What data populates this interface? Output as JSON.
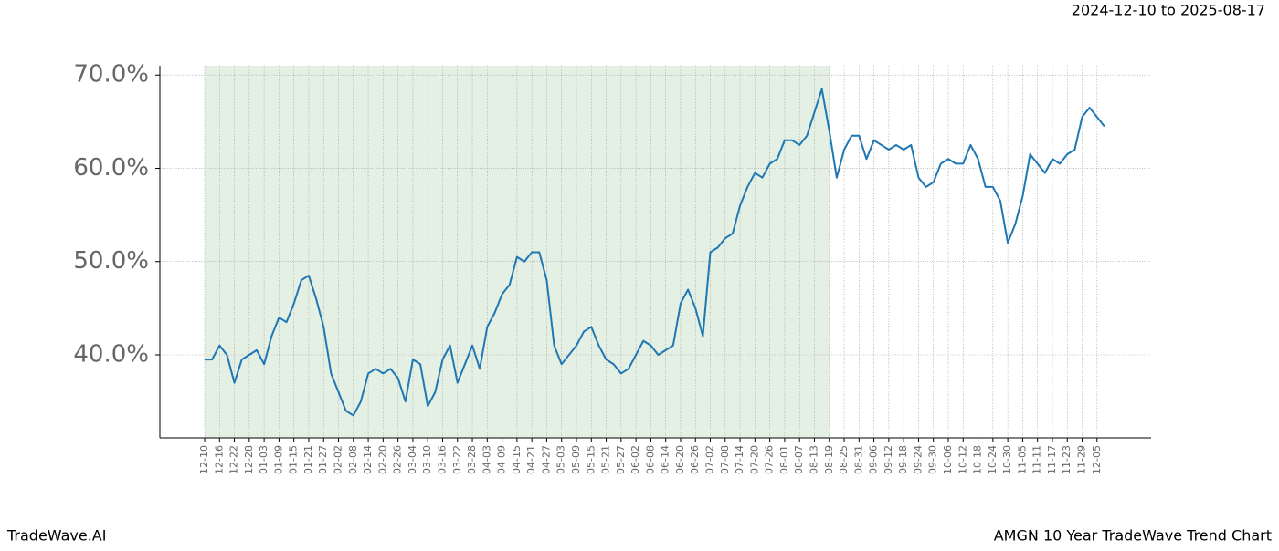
{
  "chart_data": {
    "type": "line",
    "title": "AMGN 10 Year TradeWave Trend Chart",
    "subtitle": "2024-12-10 to 2025-08-17",
    "source": "TradeWave.AI",
    "categories": [
      "12-10",
      null,
      "12-16",
      null,
      "12-22",
      null,
      "12-28",
      null,
      "01-03",
      null,
      "01-09",
      null,
      "01-15",
      null,
      "01-21",
      null,
      "01-27",
      null,
      "02-02",
      null,
      "02-08",
      null,
      "02-14",
      null,
      "02-20",
      null,
      "02-26",
      null,
      "03-04",
      null,
      "03-10",
      null,
      "03-16",
      null,
      "03-22",
      null,
      "03-28",
      null,
      "04-03",
      null,
      "04-09",
      null,
      "04-15",
      null,
      "04-21",
      null,
      "04-27",
      null,
      "05-03",
      null,
      "05-09",
      null,
      "05-15",
      null,
      "05-21",
      null,
      "05-27",
      null,
      "06-02",
      null,
      "06-08",
      null,
      "06-14",
      null,
      "06-20",
      null,
      "06-26",
      null,
      "07-02",
      null,
      "07-08",
      null,
      "07-14",
      null,
      "07-20",
      null,
      "07-26",
      null,
      "08-01",
      null,
      "08-07",
      null,
      "08-13",
      null,
      "08-19",
      null,
      "08-25",
      null,
      "08-31",
      null,
      "09-06",
      null,
      "09-12",
      null,
      "09-18",
      null,
      "09-24",
      null,
      "09-30",
      null,
      "10-06",
      null,
      "10-12",
      null,
      "10-18",
      null,
      "10-24",
      null,
      "10-30",
      null,
      "11-05",
      null,
      "11-11",
      null,
      "11-17",
      null,
      "11-23",
      null,
      "11-29",
      null,
      "12-05",
      null
    ],
    "series": [
      {
        "color": "#1f77b4",
        "values": [
          39.5,
          39.5,
          41,
          40,
          37,
          39.5,
          40,
          40.5,
          39,
          42,
          44,
          43.5,
          45.5,
          48,
          48.5,
          46,
          43,
          38,
          36,
          34,
          33.5,
          35,
          38,
          38.5,
          38,
          38.5,
          37.5,
          35,
          39.5,
          39,
          34.5,
          36,
          39.5,
          41,
          37,
          39,
          41,
          38.5,
          43,
          44.5,
          46.5,
          47.5,
          50.5,
          50,
          51,
          51,
          48,
          41,
          39,
          40,
          41,
          42.5,
          43,
          41,
          39.5,
          39,
          38,
          38.5,
          40,
          41.5,
          41,
          40,
          40.5,
          41,
          45.5,
          47,
          45,
          42,
          51,
          51.5,
          52.5,
          53,
          56,
          58,
          59.5,
          59,
          60.5,
          61,
          63,
          63,
          62.5,
          63.5,
          66,
          68.5,
          64,
          59,
          62,
          63.5,
          63.5,
          61,
          63,
          62.5,
          62,
          62.5,
          62,
          62.5,
          59,
          58,
          58.5,
          60.5,
          61,
          60.5,
          60.5,
          62.5,
          61,
          58,
          58,
          56.5,
          52,
          54,
          57,
          61.5,
          60.5,
          59.5,
          61,
          60.5,
          61.5,
          62,
          65.5,
          66.5,
          65.5,
          64.5
        ]
      }
    ],
    "highlight_range": [
      "12-10",
      "08-19"
    ],
    "highlight_color": "#e5f0e5",
    "ylim": [
      31.1,
      71.0
    ],
    "yticks": [
      {
        "value": 40,
        "label": "40.0%"
      },
      {
        "value": 50,
        "label": "50.0%"
      },
      {
        "value": 60,
        "label": "60.0%"
      },
      {
        "value": 70,
        "label": "70.0%"
      }
    ],
    "grid": true
  }
}
